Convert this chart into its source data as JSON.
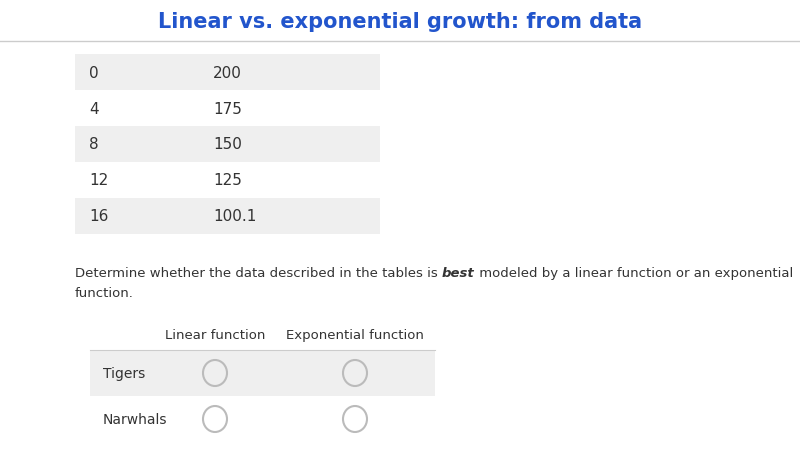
{
  "title": "Linear vs. exponential growth: from data",
  "title_color": "#2255cc",
  "title_fontsize": 15,
  "background_color": "#ffffff",
  "table_x_col": [
    "0",
    "4",
    "8",
    "12",
    "16"
  ],
  "table_y_col": [
    "200",
    "175",
    "150",
    "125",
    "100.1"
  ],
  "row_bg_odd": "#efefef",
  "row_bg_even": "#ffffff",
  "desc_part1": "Determine whether the data described in the tables is ",
  "desc_bold": "best",
  "desc_part2": " modeled by a linear function or an exponential",
  "desc_line2": "function.",
  "col_header_linear": "Linear function",
  "col_header_exp": "Exponential function",
  "radio_rows": [
    "Tigers",
    "Narwhals"
  ],
  "text_color": "#333333",
  "radio_color": "#bbbbbb",
  "separator_color": "#cccccc"
}
